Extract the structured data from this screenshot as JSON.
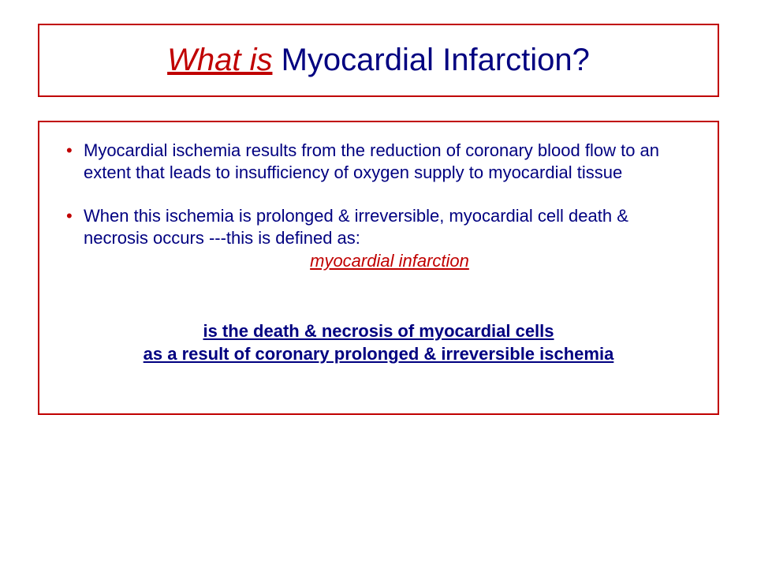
{
  "colors": {
    "border": "#c00000",
    "title_prefix": "#c00000",
    "title_rest": "#000080",
    "body_text": "#000080",
    "bullet": "#c00000",
    "highlight": "#c00000",
    "definition": "#000080",
    "background": "#ffffff"
  },
  "title": {
    "prefix": "What is",
    "rest": " Myocardial Infarction?"
  },
  "bullets": [
    {
      "text": "Myocardial ischemia results from the reduction of coronary blood flow to an extent that leads to insufficiency of oxygen supply to myocardial tissue"
    },
    {
      "text": "When this ischemia is prolonged & irreversible, myocardial cell death & necrosis occurs ---this is defined as:",
      "highlight": "myocardial infarction"
    }
  ],
  "definition": {
    "line1": "is the death & necrosis of myocardial cells",
    "line2": "as a result of coronary prolonged & irreversible ischemia"
  }
}
